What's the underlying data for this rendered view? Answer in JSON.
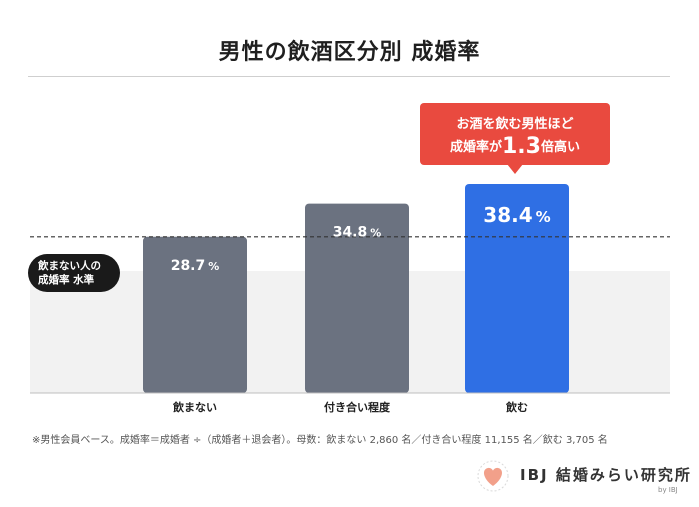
{
  "title": "男性の飲酒区分別 成婚率",
  "baseline_label": {
    "line1": "飲まない人の",
    "line2": "成婚率 水準"
  },
  "callout": {
    "line1": "お酒を飲む男性ほど",
    "line2_prefix": "成婚率が",
    "line2_value": "1.3",
    "line2_suffix": "倍高い",
    "color": "#e94a3f"
  },
  "note": "※男性会員ベース。成婚率＝成婚者 ÷（成婚者＋退会者）。母数：飲まない 2,860 名／付き合い程度 11,155 名／飲む 3,705 名",
  "logo": {
    "text": "IBJ 結婚みらい研究所",
    "sub": "by IBJ"
  },
  "chart_data": {
    "type": "bar",
    "categories": [
      "飲まない",
      "付き合い程度",
      "飲む"
    ],
    "values": [
      28.7,
      34.8,
      38.4
    ],
    "value_labels": [
      "28.7",
      "34.8",
      "38.4"
    ],
    "unit": "%",
    "colors": [
      "#6b7280",
      "#6b7280",
      "#2f6fe4"
    ],
    "reference_value": 28.7,
    "ylim": [
      0,
      38.4
    ],
    "title": "男性の飲酒区分別 成婚率",
    "xlabel": "",
    "ylabel": ""
  }
}
